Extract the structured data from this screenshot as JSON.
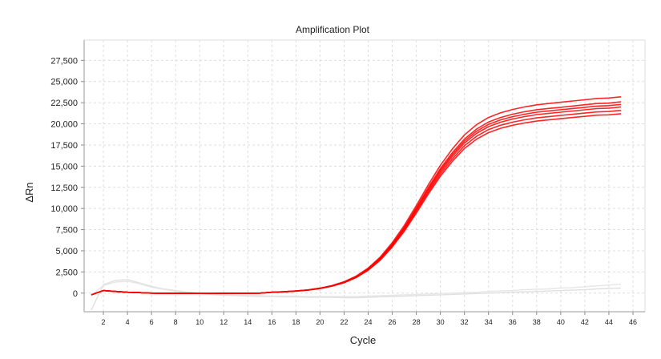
{
  "chart_data": {
    "type": "line",
    "title": "Amplification Plot",
    "xlabel": "Cycle",
    "ylabel": "ΔRn",
    "xlim": [
      0.4,
      47
    ],
    "ylim": [
      -2200,
      29900
    ],
    "x_ticks": [
      2,
      4,
      6,
      8,
      10,
      12,
      14,
      16,
      18,
      20,
      22,
      24,
      26,
      28,
      30,
      32,
      34,
      36,
      38,
      40,
      42,
      44,
      46
    ],
    "y_ticks": [
      0,
      2500,
      5000,
      7500,
      10000,
      12500,
      15000,
      17500,
      20000,
      22500,
      25000,
      27500
    ],
    "y_tick_labels": [
      "0",
      "2,500",
      "5,000",
      "7,500",
      "10,000",
      "12,500",
      "15,000",
      "17,500",
      "20,000",
      "22,500",
      "25,000",
      "27,500"
    ],
    "grid": true,
    "legend": "none",
    "x": [
      1,
      2,
      3,
      4,
      5,
      6,
      7,
      8,
      9,
      10,
      11,
      12,
      13,
      14,
      15,
      16,
      17,
      18,
      19,
      20,
      21,
      22,
      23,
      24,
      25,
      26,
      27,
      28,
      29,
      30,
      31,
      32,
      33,
      34,
      35,
      36,
      37,
      38,
      39,
      40,
      41,
      42,
      43,
      44,
      45
    ],
    "series": [
      {
        "color": "#e0e0e0",
        "values": [
          -2000,
          1000,
          1500,
          1600,
          1200,
          800,
          500,
          300,
          100,
          0,
          -150,
          -250,
          -300,
          -350,
          -400,
          -400,
          -450,
          -450,
          -500,
          -500,
          -500,
          -550,
          -550,
          -500,
          -450,
          -400,
          -350,
          -300,
          -250,
          -200,
          -150,
          -100,
          -50,
          0,
          50,
          100,
          150,
          200,
          250,
          300,
          350,
          400,
          500,
          550,
          600
        ]
      },
      {
        "color": "#e6e6e6",
        "values": [
          -300,
          900,
          1300,
          1400,
          1100,
          700,
          450,
          200,
          50,
          -50,
          -150,
          -200,
          -250,
          -300,
          -300,
          -350,
          -350,
          -350,
          -400,
          -400,
          -400,
          -400,
          -400,
          -350,
          -300,
          -250,
          -200,
          -150,
          -100,
          -50,
          0,
          50,
          100,
          200,
          250,
          300,
          400,
          450,
          500,
          600,
          650,
          750,
          850,
          950,
          1050
        ]
      },
      {
        "color": "#ff0000",
        "values": [
          -200,
          300,
          200,
          100,
          50,
          0,
          -20,
          -30,
          -20,
          -40,
          -40,
          -30,
          -30,
          -20,
          0,
          100,
          160,
          250,
          380,
          580,
          890,
          1340,
          2000,
          2950,
          4250,
          5950,
          8000,
          10350,
          12800,
          15100,
          17050,
          18700,
          19900,
          20750,
          21300,
          21700,
          22000,
          22250,
          22400,
          22550,
          22700,
          22850,
          23000,
          23050,
          23200
        ]
      },
      {
        "color": "#ff0000",
        "values": [
          -200,
          300,
          200,
          100,
          50,
          0,
          -20,
          -30,
          -20,
          -40,
          -40,
          -30,
          -30,
          -20,
          0,
          100,
          160,
          250,
          380,
          580,
          880,
          1320,
          1950,
          2870,
          4140,
          5800,
          7790,
          10080,
          12470,
          14710,
          16610,
          18210,
          19380,
          20210,
          20750,
          21140,
          21430,
          21670,
          21820,
          21960,
          22110,
          22260,
          22400,
          22450,
          22600
        ]
      },
      {
        "color": "#ff0000",
        "values": [
          -200,
          300,
          200,
          100,
          50,
          0,
          -20,
          -30,
          -20,
          -40,
          -40,
          -30,
          -30,
          -20,
          0,
          100,
          160,
          250,
          370,
          570,
          870,
          1300,
          1920,
          2830,
          4080,
          5720,
          7690,
          9950,
          12300,
          14510,
          16390,
          17970,
          19120,
          19940,
          20470,
          20850,
          21140,
          21380,
          21530,
          21670,
          21810,
          21960,
          22100,
          22150,
          22300
        ]
      },
      {
        "color": "#ff0000",
        "values": [
          -200,
          300,
          200,
          100,
          50,
          0,
          -20,
          -30,
          -20,
          -40,
          -40,
          -30,
          -30,
          -20,
          0,
          100,
          160,
          240,
          370,
          560,
          860,
          1280,
          1900,
          2800,
          4030,
          5640,
          7580,
          9810,
          12130,
          14310,
          16160,
          17730,
          18870,
          19670,
          20190,
          20570,
          20860,
          21090,
          21240,
          21380,
          21520,
          21660,
          21800,
          21850,
          22000
        ]
      },
      {
        "color": "#ff0000",
        "values": [
          -200,
          300,
          200,
          100,
          50,
          0,
          -20,
          -30,
          -20,
          -40,
          -40,
          -30,
          -30,
          -20,
          0,
          100,
          150,
          240,
          360,
          550,
          840,
          1250,
          1860,
          2750,
          3960,
          5540,
          7450,
          9640,
          11920,
          14060,
          15870,
          17410,
          18530,
          19320,
          19830,
          20200,
          20480,
          20710,
          20850,
          21000,
          21130,
          21270,
          21410,
          21460,
          21600
        ]
      },
      {
        "color": "#ff0000",
        "values": [
          -200,
          300,
          200,
          100,
          50,
          0,
          -20,
          -30,
          -20,
          -40,
          -40,
          -30,
          -30,
          -20,
          0,
          100,
          150,
          230,
          350,
          540,
          820,
          1220,
          1830,
          2700,
          3880,
          5440,
          7310,
          9460,
          11700,
          13800,
          15580,
          17090,
          18190,
          18960,
          19470,
          19830,
          20110,
          20330,
          20470,
          20610,
          20750,
          20890,
          21030,
          21070,
          21200
        ]
      }
    ]
  }
}
